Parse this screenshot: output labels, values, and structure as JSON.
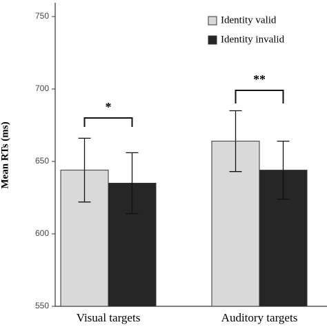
{
  "chart_data": {
    "type": "bar",
    "y_label": "Mean RTs (ms)",
    "categories": [
      "Visual targets",
      "Auditory targets"
    ],
    "series": [
      {
        "name": "Identity valid",
        "color": "#d9d9d9",
        "values": [
          644,
          664
        ],
        "errors": [
          22,
          21
        ]
      },
      {
        "name": "Identity invalid",
        "color": "#262626",
        "values": [
          635,
          644
        ],
        "errors": [
          21,
          20
        ]
      }
    ],
    "annotations": [
      "*",
      "**"
    ],
    "ylim": [
      550,
      760
    ],
    "yticks": [
      550,
      600,
      650,
      700,
      750
    ],
    "legend": "top-right"
  }
}
